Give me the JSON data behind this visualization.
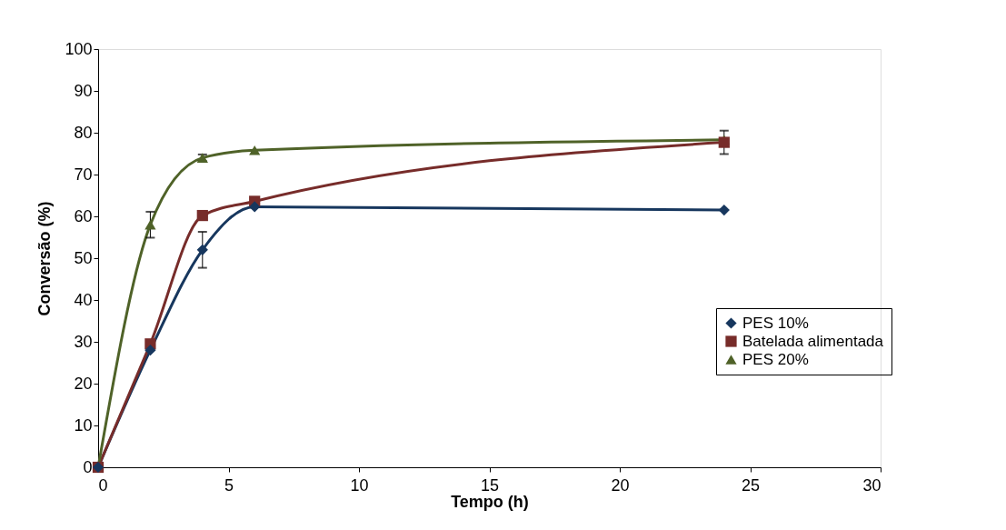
{
  "chart_data": {
    "type": "line",
    "xlabel": "Tempo (h)",
    "ylabel": "Conversão (%)",
    "x": [
      0,
      2,
      4,
      6,
      24
    ],
    "series": [
      {
        "name": "PES 10%",
        "color": "#17375e",
        "marker": "diamond",
        "values": [
          0,
          28,
          52,
          62.3,
          61.5
        ],
        "errors": [
          null,
          null,
          4.3,
          null,
          null
        ]
      },
      {
        "name": "Batelada alimentada",
        "color": "#772c2a",
        "marker": "square",
        "values": [
          0,
          29.5,
          60.2,
          63.6,
          77.7
        ],
        "errors": [
          null,
          null,
          null,
          null,
          2.8
        ]
      },
      {
        "name": "PES 20%",
        "color": "#4f6228",
        "marker": "triangle",
        "values": [
          0,
          58,
          74,
          75.8,
          78.3
        ],
        "errors": [
          null,
          3.1,
          0.8,
          null,
          null
        ]
      }
    ],
    "xlim": [
      0,
      30
    ],
    "xticks": [
      0,
      5,
      10,
      15,
      20,
      25,
      30
    ],
    "ylim": [
      0,
      100
    ],
    "yticks": [
      0,
      10,
      20,
      30,
      40,
      50,
      60,
      70,
      80,
      90,
      100
    ],
    "grid": false,
    "legend": "right"
  }
}
